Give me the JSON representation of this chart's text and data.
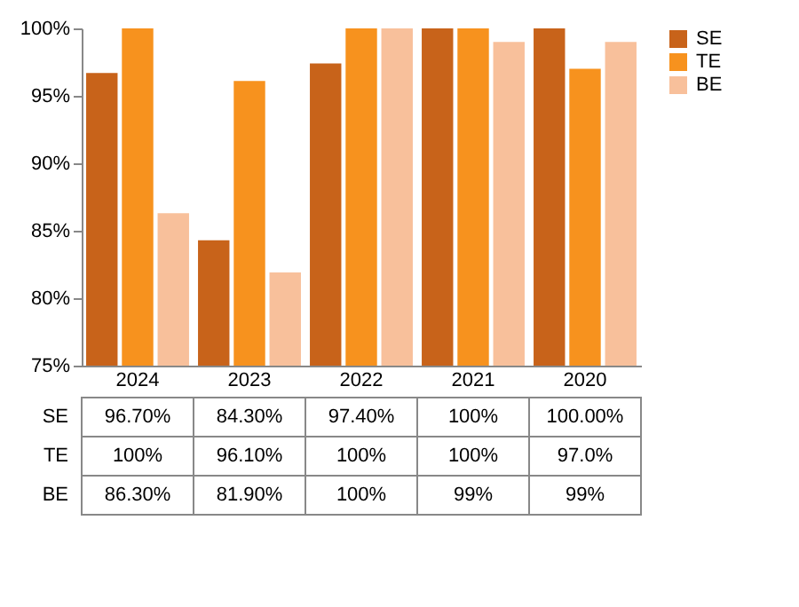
{
  "chart_data": {
    "type": "bar",
    "categories": [
      "2024",
      "2023",
      "2022",
      "2021",
      "2020"
    ],
    "series": [
      {
        "name": "SE",
        "color": "#c8631a",
        "values": [
          96.7,
          84.3,
          97.4,
          100,
          100
        ],
        "value_labels": [
          "96.70%",
          "84.30%",
          "97.40%",
          "100%",
          "100.00%"
        ]
      },
      {
        "name": "TE",
        "color": "#f7921e",
        "values": [
          100,
          96.1,
          100,
          100,
          97.0
        ],
        "value_labels": [
          "100%",
          "96.10%",
          "100%",
          "100%",
          "97.0%"
        ]
      },
      {
        "name": "BE",
        "color": "#f8c09b",
        "values": [
          86.3,
          81.9,
          100,
          99,
          99
        ],
        "value_labels": [
          "86.30%",
          "81.90%",
          "100%",
          "99%",
          "99%"
        ]
      }
    ],
    "ylim": [
      75,
      100
    ],
    "yticks": [
      {
        "value": 75,
        "label": "75%"
      },
      {
        "value": 80,
        "label": "80%"
      },
      {
        "value": 85,
        "label": "85%"
      },
      {
        "value": 90,
        "label": "90%"
      },
      {
        "value": 95,
        "label": "95%"
      },
      {
        "value": 100,
        "label": "100%"
      }
    ],
    "legend": "right",
    "grid": false
  }
}
